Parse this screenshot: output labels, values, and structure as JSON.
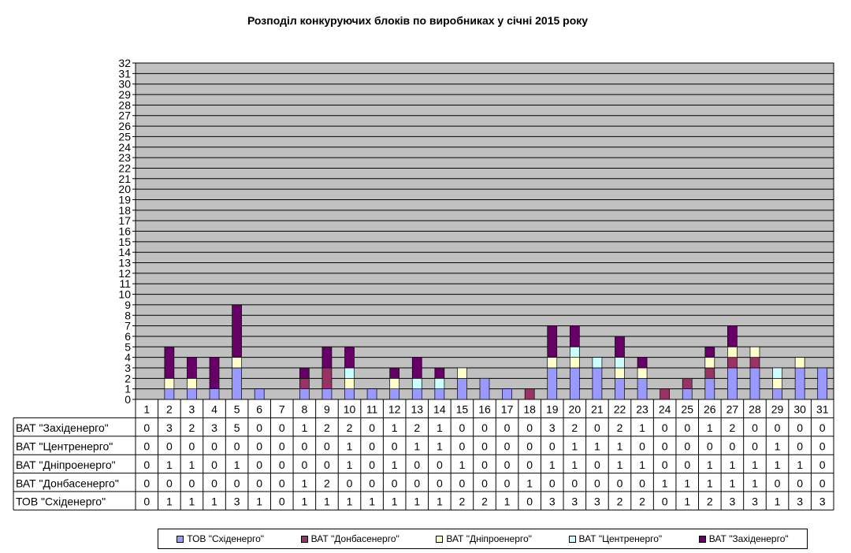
{
  "chart_data": {
    "type": "bar",
    "stacked": true,
    "title": "Розподіл конкуруючих блоків по виробниках у січні 2015 року",
    "xlabel": "",
    "ylabel": "",
    "ylim": [
      0,
      32
    ],
    "y_ticks": [
      0,
      1,
      2,
      3,
      4,
      5,
      6,
      7,
      8,
      9,
      10,
      11,
      12,
      13,
      14,
      15,
      16,
      17,
      18,
      19,
      20,
      21,
      22,
      23,
      24,
      25,
      26,
      27,
      28,
      29,
      30,
      31,
      32
    ],
    "grid": true,
    "plot_background": "#C0C0C0",
    "legend_position": "bottom",
    "categories": [
      "1",
      "2",
      "3",
      "4",
      "5",
      "6",
      "7",
      "8",
      "9",
      "10",
      "11",
      "12",
      "13",
      "14",
      "15",
      "16",
      "17",
      "18",
      "19",
      "20",
      "21",
      "22",
      "23",
      "24",
      "25",
      "26",
      "27",
      "28",
      "29",
      "30",
      "31"
    ],
    "series": [
      {
        "name": "ТОВ \"Східенерго\"",
        "color": "#9999FF",
        "values": [
          0,
          1,
          1,
          1,
          3,
          1,
          0,
          1,
          1,
          1,
          1,
          1,
          1,
          1,
          2,
          2,
          1,
          0,
          3,
          3,
          3,
          2,
          2,
          0,
          1,
          2,
          3,
          3,
          1,
          3,
          3
        ]
      },
      {
        "name": "ВАТ \"Донбасенерго\"",
        "color": "#993366",
        "values": [
          0,
          0,
          0,
          0,
          0,
          0,
          0,
          1,
          2,
          0,
          0,
          0,
          0,
          0,
          0,
          0,
          0,
          1,
          0,
          0,
          0,
          0,
          0,
          1,
          1,
          1,
          1,
          1,
          0,
          0,
          0
        ]
      },
      {
        "name": "ВАТ \"Дніпроенерго\"",
        "color": "#FFFFCC",
        "values": [
          0,
          1,
          1,
          0,
          1,
          0,
          0,
          0,
          0,
          1,
          0,
          1,
          0,
          0,
          1,
          0,
          0,
          0,
          1,
          1,
          0,
          1,
          1,
          0,
          0,
          1,
          1,
          1,
          1,
          1,
          0
        ]
      },
      {
        "name": "ВАТ \"Центренерго\"",
        "color": "#CCFFFF",
        "values": [
          0,
          0,
          0,
          0,
          0,
          0,
          0,
          0,
          0,
          1,
          0,
          0,
          1,
          1,
          0,
          0,
          0,
          0,
          0,
          1,
          1,
          1,
          0,
          0,
          0,
          0,
          0,
          0,
          1,
          0,
          0
        ]
      },
      {
        "name": "ВАТ \"Західенерго\"",
        "color": "#660066",
        "values": [
          0,
          3,
          2,
          3,
          5,
          0,
          0,
          1,
          2,
          2,
          0,
          1,
          2,
          1,
          0,
          0,
          0,
          0,
          3,
          2,
          0,
          2,
          1,
          0,
          0,
          1,
          2,
          0,
          0,
          0,
          0
        ]
      }
    ],
    "table_row_order": [
      4,
      3,
      2,
      1,
      0
    ]
  }
}
